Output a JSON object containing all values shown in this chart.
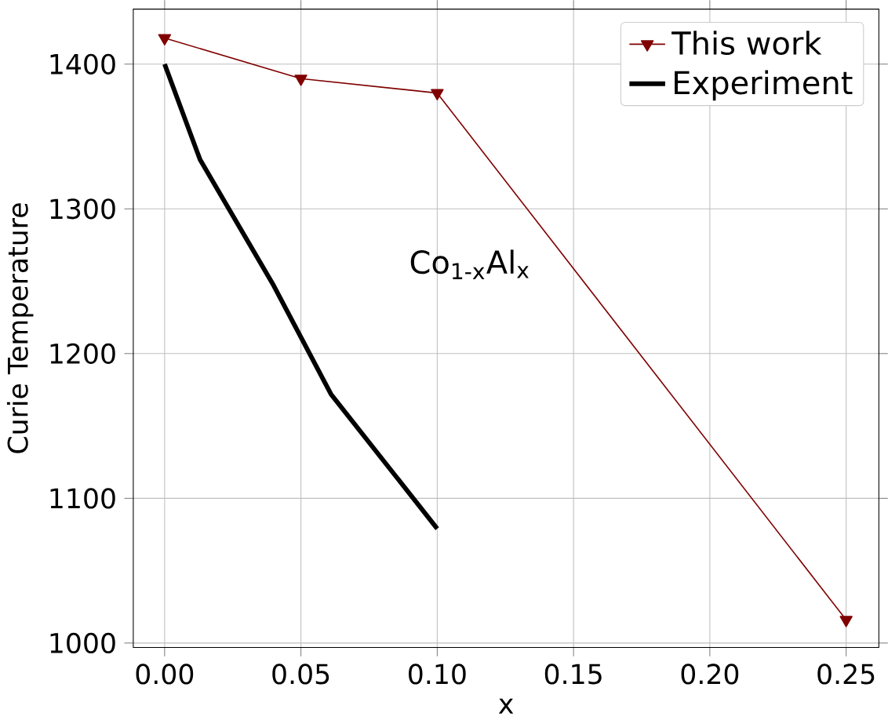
{
  "chart_data": {
    "type": "line",
    "xlabel": "x",
    "ylabel": "Curie Temperature",
    "xlim": [
      -0.0115,
      0.262
    ],
    "ylim": [
      997,
      1438
    ],
    "xticks": [
      {
        "value": 0,
        "label": "0.00"
      },
      {
        "value": 0.05,
        "label": "0.05"
      },
      {
        "value": 0.1,
        "label": "0.10"
      },
      {
        "value": 0.15,
        "label": "0.15"
      },
      {
        "value": 0.2,
        "label": "0.20"
      },
      {
        "value": 0.25,
        "label": "0.25"
      }
    ],
    "yticks": [
      1000,
      1100,
      1200,
      1300,
      1400
    ],
    "grid": true,
    "legend": "top right",
    "annotations": [
      "Co$_{1-x}$Al$_{x}$"
    ],
    "series": [
      {
        "name": "This work",
        "color": "#800000",
        "marker": "triangle",
        "x": [
          0,
          0.05,
          0.1,
          0.25
        ],
        "values": [
          1418,
          1390,
          1380,
          1016
        ]
      },
      {
        "name": "Experiment",
        "color": "#000000",
        "marker": "none",
        "x": [
          0,
          0.013,
          0.04,
          0.061,
          0.1
        ],
        "values": [
          1400,
          1334,
          1247,
          1172,
          1079
        ]
      }
    ]
  }
}
